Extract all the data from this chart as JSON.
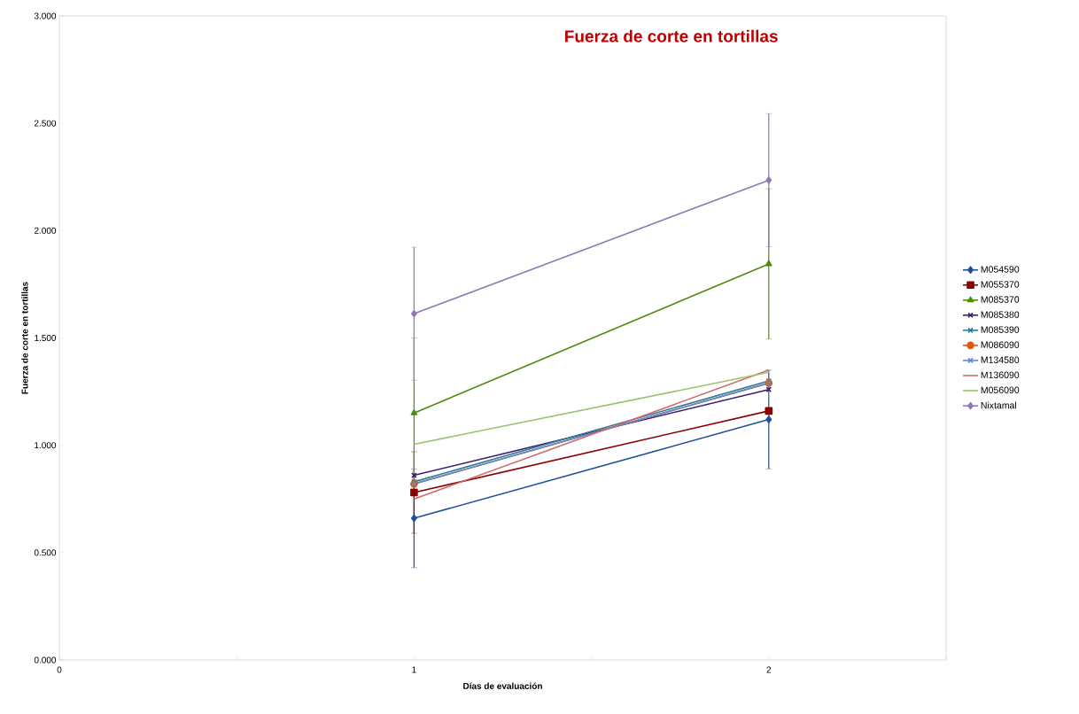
{
  "chart_data": {
    "type": "line",
    "title": "Fuerza de corte en tortillas",
    "xlabel": "Días de evaluación",
    "ylabel": "Fuerza de corte en tortillas",
    "x": [
      1,
      2
    ],
    "series": [
      {
        "name": "M054590",
        "color": "#1f4e9c",
        "marker": "diamond",
        "values": [
          0.66,
          1.12
        ],
        "errors": [
          0.23,
          0.23
        ]
      },
      {
        "name": "M055370",
        "color": "#8b0000",
        "marker": "square",
        "values": [
          0.78,
          1.16
        ],
        "errors": [
          0.19,
          null
        ]
      },
      {
        "name": "M085370",
        "color": "#4f8a10",
        "marker": "triangle",
        "values": [
          1.15,
          1.845
        ],
        "errors": [
          0.35,
          0.35
        ]
      },
      {
        "name": "M085380",
        "color": "#3b1f6e",
        "marker": "cross",
        "values": [
          0.86,
          1.26
        ]
      },
      {
        "name": "M085390",
        "color": "#2b7c99",
        "marker": "cross",
        "values": [
          0.83,
          1.3
        ]
      },
      {
        "name": "M086090",
        "color": "#e05a0a",
        "marker": "circle",
        "values": [
          0.82,
          1.29
        ]
      },
      {
        "name": "M134580",
        "color": "#5b8ad0",
        "marker": "cross",
        "values": [
          0.82,
          1.29
        ]
      },
      {
        "name": "M136090",
        "color": "#d06a6a",
        "marker": "none",
        "values": [
          0.75,
          1.35
        ]
      },
      {
        "name": "M056090",
        "color": "#9bc26a",
        "marker": "none",
        "values": [
          1.005,
          1.34
        ]
      },
      {
        "name": "Nixtamal",
        "color": "#8f78b5",
        "marker": "diamond",
        "values": [
          1.613,
          2.235
        ],
        "errors": [
          0.31,
          0.31
        ]
      }
    ],
    "xlim": [
      0,
      2.5
    ],
    "xticks": [
      0,
      {
        "value": 0.5,
        "label": null
      },
      1,
      {
        "value": 1.5,
        "label": null
      },
      2,
      {
        "value": 2.5,
        "label": null
      }
    ],
    "ylim": [
      0,
      3
    ],
    "yticks": [
      {
        "value": 0,
        "label": "0.000"
      },
      {
        "value": 0.5,
        "label": "0.500"
      },
      {
        "value": 1,
        "label": "1.000"
      },
      {
        "value": 1.5,
        "label": "1.500"
      },
      {
        "value": 2,
        "label": "2.000"
      },
      {
        "value": 2.5,
        "label": "2.500"
      },
      {
        "value": 3,
        "label": "3.000"
      }
    ],
    "grid": false,
    "legend": "right"
  }
}
